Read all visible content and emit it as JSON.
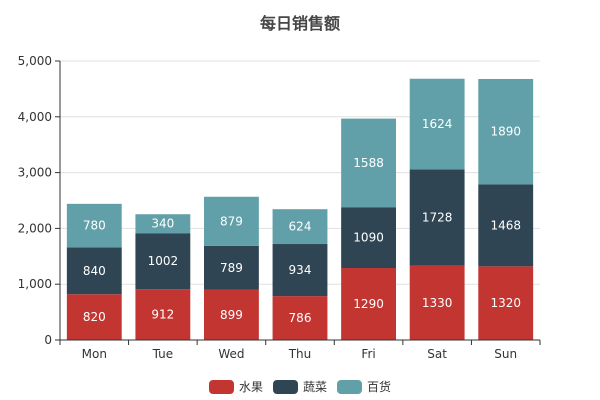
{
  "chart_data": {
    "type": "bar",
    "stacked": true,
    "title": "每日销售额",
    "xlabel": "",
    "ylabel": "",
    "categories": [
      "Mon",
      "Tue",
      "Wed",
      "Thu",
      "Fri",
      "Sat",
      "Sun"
    ],
    "series": [
      {
        "name": "水果",
        "color": "#c23531",
        "values": [
          820,
          912,
          899,
          786,
          1290,
          1330,
          1320
        ]
      },
      {
        "name": "蔬菜",
        "color": "#2f4554",
        "values": [
          840,
          1002,
          789,
          934,
          1090,
          1728,
          1468
        ]
      },
      {
        "name": "百货",
        "color": "#61a0a8",
        "values": [
          780,
          340,
          879,
          624,
          1588,
          1624,
          1890
        ]
      }
    ],
    "ylim": [
      0,
      5000
    ],
    "yticks": [
      "0",
      "1,000",
      "2,000",
      "3,000",
      "4,000",
      "5,000"
    ],
    "grid": true,
    "legend_position": "bottom-center"
  }
}
